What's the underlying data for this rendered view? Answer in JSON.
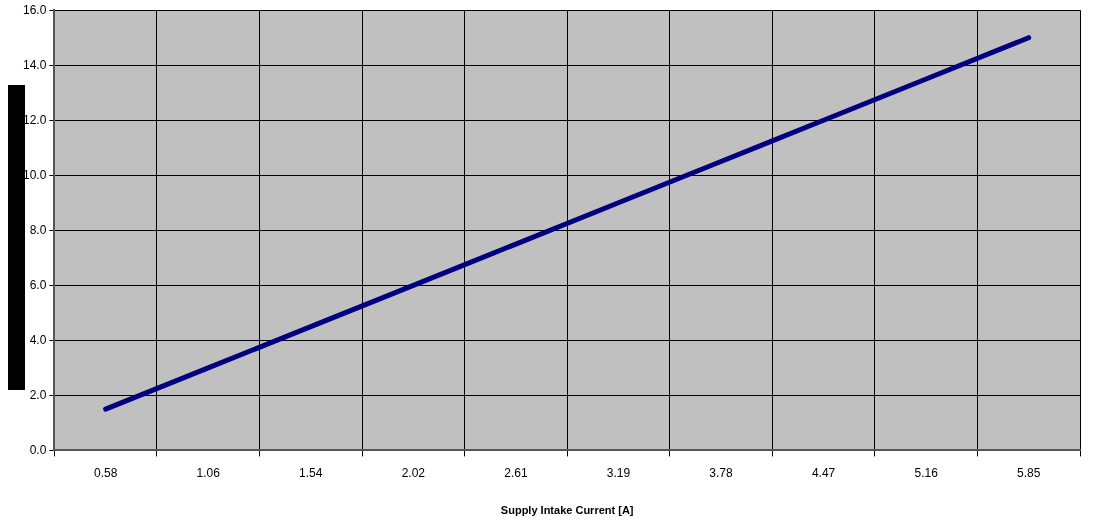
{
  "chart_data": {
    "type": "line",
    "xlabel": "Supply Intake Current [A]",
    "categories": [
      "0.58",
      "1.06",
      "1.54",
      "2.02",
      "2.61",
      "3.19",
      "3.78",
      "4.47",
      "5.16",
      "5.85"
    ],
    "series": [
      {
        "color": "#000080",
        "values": [
          1.5,
          3.0,
          4.5,
          6.0,
          7.5,
          9.0,
          10.5,
          12.0,
          13.5,
          15.0
        ]
      }
    ],
    "ylim": [
      0,
      16
    ],
    "yticks": [
      {
        "value": 0,
        "label": "0.0"
      },
      {
        "value": 2,
        "label": "2.0"
      },
      {
        "value": 4,
        "label": "4.0"
      },
      {
        "value": 6,
        "label": "6.0"
      },
      {
        "value": 8,
        "label": "8.0"
      },
      {
        "value": 10,
        "label": "10.0"
      },
      {
        "value": 12,
        "label": "12.0"
      },
      {
        "value": 14,
        "label": "14.0"
      },
      {
        "value": 16,
        "label": "16.0"
      }
    ],
    "grid": true,
    "legend": false,
    "marker": "none",
    "line_style": "solid"
  }
}
